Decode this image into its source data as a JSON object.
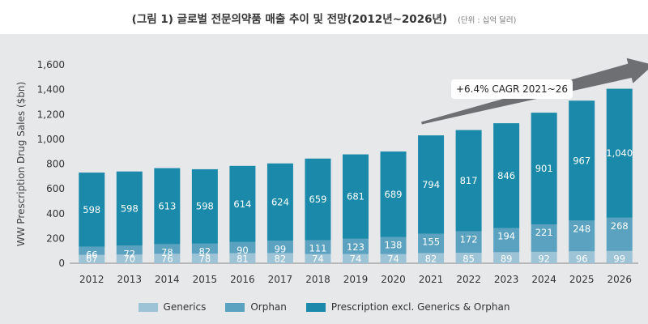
{
  "header": {
    "title": "(그림 1) 글로벌 전문의약품 매출 추이 및 전망(2012년~2026년)",
    "unit": "(단위 : 십억 달러)"
  },
  "chart_data": {
    "type": "bar",
    "stacked": true,
    "title": "(그림 1) 글로벌 전문의약품 매출 추이 및 전망(2012년~2026년)",
    "xlabel": "",
    "ylabel": "WW Prescription Drug Sales ($bn)",
    "ylim": [
      0,
      1600
    ],
    "yticks": [
      0,
      200,
      400,
      600,
      800,
      1000,
      1200,
      1400,
      1600
    ],
    "ytick_labels": [
      "0",
      "200",
      "400",
      "600",
      "800",
      "1,000",
      "1,200",
      "1,400",
      "1,600"
    ],
    "categories": [
      "2012",
      "2013",
      "2014",
      "2015",
      "2016",
      "2017",
      "2018",
      "2019",
      "2020",
      "2021",
      "2022",
      "2023",
      "2024",
      "2025",
      "2026"
    ],
    "series": [
      {
        "name": "Generics",
        "color": "#9dc3d6",
        "values": [
          67,
          70,
          76,
          78,
          81,
          82,
          74,
          74,
          74,
          82,
          85,
          89,
          92,
          96,
          99
        ],
        "labels": [
          "67",
          "70",
          "76",
          "78",
          "81",
          "82",
          "74",
          "74",
          "74",
          "82",
          "85",
          "89",
          "92",
          "96",
          "99"
        ]
      },
      {
        "name": "Orphan",
        "color": "#5aa2c0",
        "values": [
          66,
          72,
          78,
          82,
          90,
          99,
          111,
          123,
          138,
          155,
          172,
          194,
          221,
          248,
          268
        ],
        "labels": [
          "66",
          "72",
          "78",
          "82",
          "90",
          "99",
          "111",
          "123",
          "138",
          "155",
          "172",
          "194",
          "221",
          "248",
          "268"
        ]
      },
      {
        "name": "Prescription excl. Generics & Orphan",
        "color": "#1b8aaa",
        "values": [
          598,
          598,
          613,
          598,
          614,
          624,
          659,
          681,
          689,
          794,
          817,
          846,
          901,
          967,
          1040
        ],
        "labels": [
          "598",
          "598",
          "613",
          "598",
          "614",
          "624",
          "659",
          "681",
          "689",
          "794",
          "817",
          "846",
          "901",
          "967",
          "1,040"
        ]
      }
    ],
    "annotation": {
      "text": "+6.4% CAGR 2021~26",
      "from_category": "2021",
      "to_category": "2026"
    }
  }
}
